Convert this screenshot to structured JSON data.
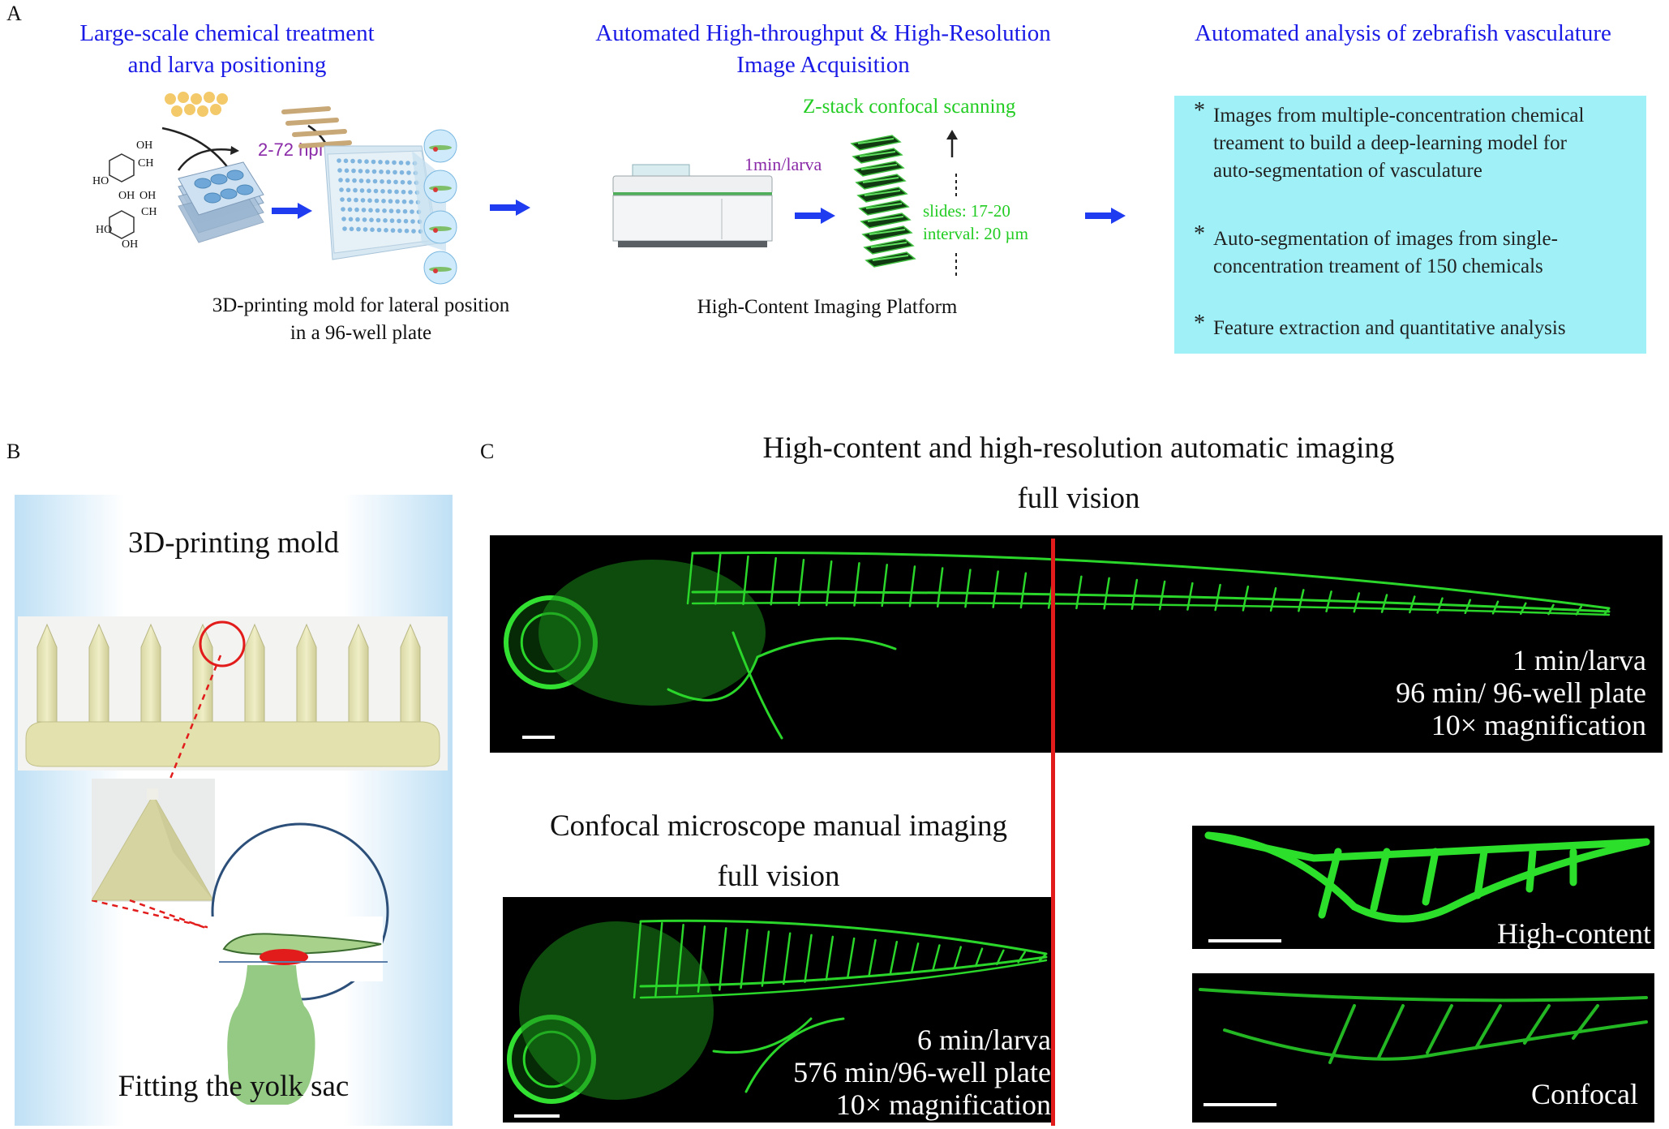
{
  "panel_a": {
    "letter": "A",
    "titles": {
      "step1": [
        "Large-scale chemical treatment",
        "and larva positioning"
      ],
      "step2": [
        "Automated High-throughput & High-Resolution",
        "Image Acquisition"
      ],
      "step3": "Automated analysis of zebrafish vasculature"
    },
    "hpf_label": "2-72 hpf",
    "min_per_larva": "1min/larva",
    "zstack_label": "Z-stack confocal scanning",
    "slides_label": "slides: 17-20",
    "interval_label": "interval: 20 µm",
    "chem": {
      "oh1": "OH",
      "ch1": "CH",
      "ho1": "HO",
      "oh2": "OH",
      "oh3": "OH",
      "ch2": "CH",
      "ho2": "HO",
      "oh4": "OH"
    },
    "mold_caption": [
      "3D-printing mold for lateral position",
      "in a 96-well plate"
    ],
    "platform_caption": "High-Content Imaging Platform",
    "analysis_items": [
      [
        "Images from multiple-concentration chemical",
        "treament to build a deep-learning model for",
        "auto-segmentation of vasculature"
      ],
      [
        "Auto-segmentation of images from single-",
        "concentration treament of 150 chemicals"
      ],
      [
        "Feature extraction and quantitative analysis"
      ]
    ],
    "colors": {
      "title_blue": "#1a1ae6",
      "box_cyan": "#9ff0f7",
      "green": "#22cc22",
      "purple": "#8a2aa8",
      "arrow_blue": "#1f3cf0"
    }
  },
  "panel_b": {
    "letter": "B",
    "title": "3D-printing mold",
    "caption": "Fitting  the yolk sac"
  },
  "panel_c": {
    "letter": "C",
    "title_lines": [
      "High-content and high-resolution automatic imaging",
      "full vision"
    ],
    "high_content_info": [
      "1 min/larva",
      "96 min/ 96-well plate",
      "10× magnification"
    ],
    "confocal_title": [
      "Confocal microscope manual imaging",
      "full vision"
    ],
    "confocal_info": [
      "6 min/larva",
      "576 min/96-well plate",
      "10× magnification"
    ],
    "inset_high": "High-content",
    "inset_confocal": "Confocal",
    "divider_color": "#e21b1b"
  }
}
